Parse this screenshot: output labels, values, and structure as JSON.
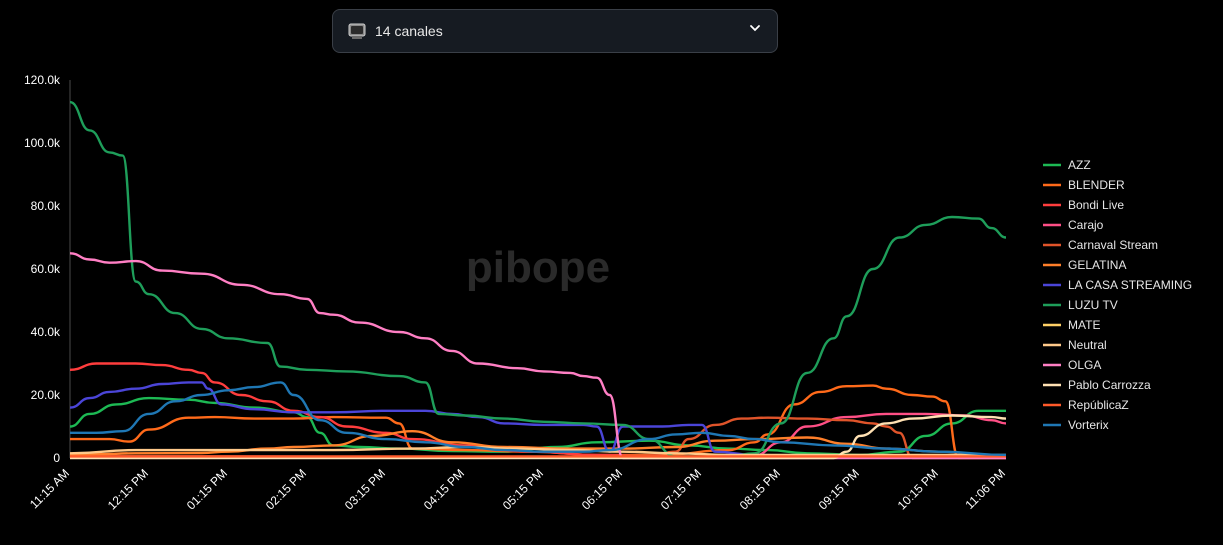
{
  "selector": {
    "label": "14 canales",
    "icon": "tv-icon"
  },
  "watermark": "pibope",
  "chart_data": {
    "type": "line",
    "title": "",
    "xlabel": "",
    "ylabel": "",
    "ylim": [
      0,
      120000
    ],
    "yticks": [
      0,
      20000,
      40000,
      60000,
      80000,
      100000,
      120000
    ],
    "ytick_labels": [
      "0",
      "20.0k",
      "40.0k",
      "60.0k",
      "80.0k",
      "100.0k",
      "120.0k"
    ],
    "xlim": [
      0,
      711
    ],
    "xtick_values": [
      0,
      60,
      120,
      180,
      240,
      300,
      360,
      420,
      480,
      540,
      600,
      660,
      711
    ],
    "xtick_labels": [
      "11:15 AM",
      "12:15 PM",
      "01:15 PM",
      "02:15 PM",
      "03:15 PM",
      "04:15 PM",
      "05:15 PM",
      "06:15 PM",
      "07:15 PM",
      "08:15 PM",
      "09:15 PM",
      "10:15 PM",
      "11:06 PM"
    ],
    "grid": false,
    "legend_position": "right",
    "series": [
      {
        "name": "AZZ",
        "color": "#1db954",
        "points": [
          [
            0,
            10000
          ],
          [
            15,
            14000
          ],
          [
            35,
            17000
          ],
          [
            60,
            19000
          ],
          [
            90,
            18500
          ],
          [
            110,
            17500
          ],
          [
            140,
            16000
          ],
          [
            170,
            14500
          ],
          [
            180,
            13000
          ],
          [
            190,
            8000
          ],
          [
            200,
            4000
          ],
          [
            220,
            3500
          ],
          [
            250,
            3000
          ],
          [
            290,
            2200
          ],
          [
            330,
            2000
          ],
          [
            370,
            3500
          ],
          [
            400,
            5000
          ],
          [
            440,
            5500
          ],
          [
            470,
            4000
          ],
          [
            500,
            3000
          ],
          [
            530,
            2500
          ],
          [
            560,
            1500
          ],
          [
            600,
            1000
          ],
          [
            630,
            2000
          ],
          [
            650,
            7000
          ],
          [
            670,
            11000
          ],
          [
            690,
            15000
          ],
          [
            711,
            15000
          ]
        ]
      },
      {
        "name": "BLENDER",
        "color": "#ff6a1a",
        "points": [
          [
            0,
            6000
          ],
          [
            30,
            6000
          ],
          [
            45,
            5200
          ],
          [
            60,
            9000
          ],
          [
            90,
            12800
          ],
          [
            110,
            13000
          ],
          [
            140,
            12500
          ],
          [
            170,
            12500
          ],
          [
            200,
            13000
          ],
          [
            240,
            12800
          ],
          [
            250,
            11000
          ],
          [
            260,
            3000
          ],
          [
            300,
            2500
          ],
          [
            350,
            2000
          ],
          [
            400,
            1000
          ],
          [
            450,
            1000
          ],
          [
            500,
            2500
          ],
          [
            520,
            5000
          ],
          [
            530,
            7500
          ],
          [
            550,
            17000
          ],
          [
            570,
            21000
          ],
          [
            590,
            22800
          ],
          [
            610,
            23000
          ],
          [
            620,
            22000
          ],
          [
            640,
            20000
          ],
          [
            655,
            19500
          ],
          [
            665,
            18000
          ],
          [
            675,
            0
          ],
          [
            711,
            0
          ]
        ]
      },
      {
        "name": "Bondi Live",
        "color": "#ff3d3d",
        "points": [
          [
            0,
            28000
          ],
          [
            20,
            30000
          ],
          [
            50,
            30000
          ],
          [
            70,
            29500
          ],
          [
            90,
            28000
          ],
          [
            100,
            27000
          ],
          [
            110,
            24000
          ],
          [
            130,
            20000
          ],
          [
            150,
            18000
          ],
          [
            170,
            15000
          ],
          [
            190,
            13000
          ],
          [
            210,
            10000
          ],
          [
            240,
            8000
          ],
          [
            260,
            6000
          ],
          [
            300,
            4000
          ],
          [
            350,
            2000
          ],
          [
            400,
            1000
          ],
          [
            450,
            500
          ],
          [
            500,
            500
          ],
          [
            560,
            300
          ],
          [
            620,
            200
          ],
          [
            711,
            200
          ]
        ]
      },
      {
        "name": "Carajo",
        "color": "#ff4f86",
        "points": [
          [
            0,
            500
          ],
          [
            100,
            500
          ],
          [
            200,
            400
          ],
          [
            300,
            300
          ],
          [
            400,
            300
          ],
          [
            480,
            300
          ],
          [
            500,
            400
          ],
          [
            520,
            800
          ],
          [
            540,
            5000
          ],
          [
            560,
            10000
          ],
          [
            590,
            13000
          ],
          [
            620,
            14000
          ],
          [
            650,
            14000
          ],
          [
            680,
            13500
          ],
          [
            700,
            12000
          ],
          [
            711,
            11000
          ]
        ]
      },
      {
        "name": "Carnaval Stream",
        "color": "#e0542a",
        "points": [
          [
            0,
            500
          ],
          [
            200,
            400
          ],
          [
            400,
            400
          ],
          [
            440,
            800
          ],
          [
            460,
            2000
          ],
          [
            470,
            6000
          ],
          [
            490,
            10500
          ],
          [
            510,
            12500
          ],
          [
            530,
            12800
          ],
          [
            560,
            12500
          ],
          [
            590,
            12000
          ],
          [
            610,
            11000
          ],
          [
            620,
            10000
          ],
          [
            630,
            8000
          ],
          [
            640,
            0
          ],
          [
            711,
            0
          ]
        ]
      },
      {
        "name": "GELATINA",
        "color": "#ff7f2a",
        "points": [
          [
            0,
            1000
          ],
          [
            20,
            1200
          ],
          [
            50,
            1500
          ],
          [
            100,
            1600
          ],
          [
            120,
            2000
          ],
          [
            150,
            3000
          ],
          [
            170,
            3500
          ],
          [
            200,
            4000
          ],
          [
            230,
            7000
          ],
          [
            260,
            8500
          ],
          [
            290,
            5000
          ],
          [
            330,
            3500
          ],
          [
            380,
            3000
          ],
          [
            420,
            3000
          ],
          [
            460,
            3500
          ],
          [
            490,
            5500
          ],
          [
            520,
            6000
          ],
          [
            560,
            6500
          ],
          [
            590,
            4500
          ],
          [
            620,
            3000
          ],
          [
            660,
            2000
          ],
          [
            711,
            500
          ]
        ]
      },
      {
        "name": "LA CASA STREAMING",
        "color": "#4b45d8",
        "points": [
          [
            0,
            16000
          ],
          [
            15,
            19000
          ],
          [
            30,
            21000
          ],
          [
            50,
            22000
          ],
          [
            70,
            23500
          ],
          [
            90,
            24000
          ],
          [
            100,
            24000
          ],
          [
            105,
            22000
          ],
          [
            115,
            17000
          ],
          [
            140,
            15500
          ],
          [
            170,
            14500
          ],
          [
            200,
            14500
          ],
          [
            240,
            15000
          ],
          [
            270,
            15000
          ],
          [
            290,
            14000
          ],
          [
            310,
            13000
          ],
          [
            330,
            11000
          ],
          [
            360,
            10500
          ],
          [
            390,
            10500
          ],
          [
            400,
            10000
          ],
          [
            410,
            2000
          ],
          [
            420,
            10000
          ],
          [
            450,
            10000
          ],
          [
            470,
            10500
          ],
          [
            480,
            10500
          ],
          [
            490,
            2000
          ],
          [
            520,
            1000
          ],
          [
            560,
            500
          ],
          [
            620,
            500
          ],
          [
            711,
            500
          ]
        ]
      },
      {
        "name": "LUZU TV",
        "color": "#1e9e5a",
        "points": [
          [
            0,
            113000
          ],
          [
            15,
            104000
          ],
          [
            30,
            97000
          ],
          [
            40,
            96000
          ],
          [
            50,
            56000
          ],
          [
            60,
            52000
          ],
          [
            80,
            46000
          ],
          [
            100,
            41000
          ],
          [
            120,
            38000
          ],
          [
            150,
            36500
          ],
          [
            160,
            29000
          ],
          [
            180,
            28000
          ],
          [
            210,
            27500
          ],
          [
            250,
            26000
          ],
          [
            270,
            24000
          ],
          [
            280,
            14000
          ],
          [
            300,
            13500
          ],
          [
            330,
            12500
          ],
          [
            360,
            11500
          ],
          [
            390,
            11000
          ],
          [
            420,
            10500
          ],
          [
            440,
            6000
          ],
          [
            460,
            500
          ],
          [
            500,
            500
          ],
          [
            520,
            1500
          ],
          [
            540,
            11000
          ],
          [
            560,
            27000
          ],
          [
            580,
            38000
          ],
          [
            590,
            45000
          ],
          [
            610,
            60000
          ],
          [
            630,
            70000
          ],
          [
            650,
            74000
          ],
          [
            670,
            76500
          ],
          [
            690,
            76000
          ],
          [
            700,
            73000
          ],
          [
            711,
            70000
          ]
        ]
      },
      {
        "name": "MATE",
        "color": "#ffd066",
        "points": [
          [
            0,
            300
          ],
          [
            200,
            300
          ],
          [
            400,
            300
          ],
          [
            600,
            300
          ],
          [
            711,
            300
          ]
        ]
      },
      {
        "name": "Neutral",
        "color": "#ffc98a",
        "points": [
          [
            0,
            1500
          ],
          [
            50,
            2500
          ],
          [
            100,
            2500
          ],
          [
            150,
            2500
          ],
          [
            200,
            2500
          ],
          [
            260,
            3000
          ],
          [
            300,
            3500
          ],
          [
            340,
            3000
          ],
          [
            380,
            2500
          ],
          [
            420,
            2000
          ],
          [
            460,
            1500
          ],
          [
            500,
            1000
          ],
          [
            711,
            1000
          ]
        ]
      },
      {
        "name": "OLGA",
        "color": "#ff7fc4",
        "points": [
          [
            0,
            65000
          ],
          [
            15,
            63000
          ],
          [
            30,
            62000
          ],
          [
            50,
            62500
          ],
          [
            70,
            59500
          ],
          [
            100,
            58500
          ],
          [
            130,
            55000
          ],
          [
            160,
            52000
          ],
          [
            180,
            50500
          ],
          [
            190,
            46000
          ],
          [
            200,
            45500
          ],
          [
            220,
            43000
          ],
          [
            250,
            40000
          ],
          [
            270,
            38000
          ],
          [
            290,
            34000
          ],
          [
            310,
            30000
          ],
          [
            340,
            28500
          ],
          [
            360,
            27500
          ],
          [
            380,
            27000
          ],
          [
            390,
            26000
          ],
          [
            400,
            25500
          ],
          [
            410,
            20000
          ],
          [
            420,
            0
          ],
          [
            711,
            0
          ]
        ]
      },
      {
        "name": "Pablo Carrozza",
        "color": "#ffe1b3",
        "points": [
          [
            0,
            0
          ],
          [
            580,
            0
          ],
          [
            590,
            2000
          ],
          [
            600,
            7000
          ],
          [
            620,
            11000
          ],
          [
            640,
            12500
          ],
          [
            670,
            13500
          ],
          [
            700,
            13000
          ],
          [
            711,
            12500
          ]
        ]
      },
      {
        "name": "RepúblicaZ",
        "color": "#ff5a2a",
        "points": [
          [
            0,
            500
          ],
          [
            200,
            500
          ],
          [
            400,
            500
          ],
          [
            600,
            500
          ],
          [
            711,
            500
          ]
        ]
      },
      {
        "name": "Vorterix",
        "color": "#1f77b4",
        "points": [
          [
            0,
            8000
          ],
          [
            20,
            8000
          ],
          [
            40,
            8500
          ],
          [
            60,
            14000
          ],
          [
            80,
            18000
          ],
          [
            100,
            20000
          ],
          [
            120,
            21500
          ],
          [
            140,
            22500
          ],
          [
            160,
            24000
          ],
          [
            170,
            20000
          ],
          [
            190,
            12000
          ],
          [
            210,
            8000
          ],
          [
            240,
            6000
          ],
          [
            270,
            5000
          ],
          [
            300,
            3500
          ],
          [
            330,
            2500
          ],
          [
            360,
            2000
          ],
          [
            390,
            2000
          ],
          [
            410,
            2500
          ],
          [
            440,
            6000
          ],
          [
            460,
            7500
          ],
          [
            480,
            8000
          ],
          [
            500,
            7000
          ],
          [
            520,
            6000
          ],
          [
            540,
            5000
          ],
          [
            580,
            4000
          ],
          [
            620,
            3000
          ],
          [
            660,
            2000
          ],
          [
            711,
            1000
          ]
        ]
      }
    ]
  }
}
